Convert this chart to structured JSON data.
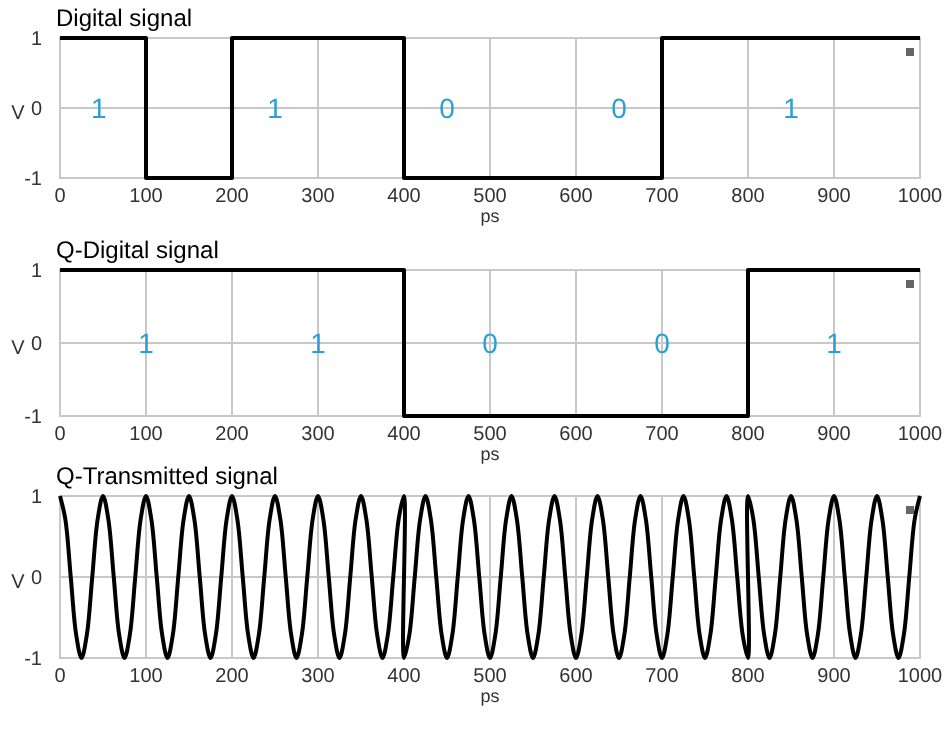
{
  "chart_data": [
    {
      "type": "step",
      "title": "Digital signal",
      "xlabel": "ps",
      "ylabel": "V",
      "x": [
        0,
        100,
        200,
        400,
        700,
        1000
      ],
      "series": [
        {
          "color": "#000000",
          "values": [
            1,
            -1,
            1,
            -1,
            1,
            1
          ]
        }
      ],
      "xlim": [
        0,
        1000
      ],
      "xticks": [
        0,
        100,
        200,
        300,
        400,
        500,
        600,
        700,
        800,
        900,
        1000
      ],
      "ylim": [
        -1,
        1
      ],
      "yticks": [
        -1,
        0,
        1
      ],
      "grid": true,
      "annotations": [
        "1",
        "1",
        "0",
        "0",
        "1"
      ]
    },
    {
      "type": "step",
      "title": "Q-Digital signal",
      "xlabel": "ps",
      "ylabel": "V",
      "x": [
        0,
        400,
        800,
        1000
      ],
      "series": [
        {
          "color": "#000000",
          "values": [
            1,
            -1,
            1,
            1
          ]
        }
      ],
      "xlim": [
        0,
        1000
      ],
      "xticks": [
        0,
        100,
        200,
        300,
        400,
        500,
        600,
        700,
        800,
        900,
        1000
      ],
      "ylim": [
        -1,
        1
      ],
      "yticks": [
        -1,
        0,
        1
      ],
      "grid": true,
      "annotations": [
        "1",
        "1",
        "0",
        "0",
        "1"
      ]
    },
    {
      "type": "line",
      "title": "Q-Transmitted signal",
      "xlabel": "ps",
      "ylabel": "V",
      "x": [
        0,
        6.25,
        12.5,
        18.75,
        25,
        31.25,
        37.5,
        43.75,
        50,
        56.25,
        62.5,
        68.75,
        75,
        81.25,
        87.5,
        93.75,
        100,
        106.25,
        112.5,
        118.75,
        125,
        131.25,
        137.5,
        143.75,
        150,
        156.25,
        162.5,
        168.75,
        175,
        181.25,
        187.5,
        193.75,
        200,
        206.25,
        212.5,
        218.75,
        225,
        231.25,
        237.5,
        243.75,
        250,
        256.25,
        262.5,
        268.75,
        275,
        281.25,
        287.5,
        293.75,
        300,
        306.25,
        312.5,
        318.75,
        325,
        331.25,
        337.5,
        343.75,
        350,
        356.25,
        362.5,
        368.75,
        375,
        381.25,
        387.5,
        393.75,
        400,
        400,
        406.25,
        412.5,
        418.75,
        425,
        431.25,
        437.5,
        443.75,
        450,
        456.25,
        462.5,
        468.75,
        475,
        481.25,
        487.5,
        493.75,
        500,
        506.25,
        512.5,
        518.75,
        525,
        531.25,
        537.5,
        543.75,
        550,
        556.25,
        562.5,
        568.75,
        575,
        581.25,
        587.5,
        593.75,
        600,
        606.25,
        612.5,
        618.75,
        625,
        631.25,
        637.5,
        643.75,
        650,
        656.25,
        662.5,
        668.75,
        675,
        681.25,
        687.5,
        693.75,
        700,
        706.25,
        712.5,
        718.75,
        725,
        731.25,
        737.5,
        743.75,
        750,
        756.25,
        762.5,
        768.75,
        775,
        781.25,
        787.5,
        793.75,
        800,
        800,
        806.25,
        812.5,
        818.75,
        825,
        831.25,
        837.5,
        843.75,
        850,
        856.25,
        862.5,
        868.75,
        875,
        881.25,
        887.5,
        893.75,
        900,
        906.25,
        912.5,
        918.75,
        925,
        931.25,
        937.5,
        943.75,
        950,
        956.25,
        962.5,
        968.75,
        975,
        981.25,
        987.5,
        993.75,
        1000
      ],
      "series": [
        {
          "color": "#000000",
          "values": [
            1,
            0.71,
            0,
            -0.71,
            -1,
            -0.71,
            0,
            0.71,
            1,
            0.71,
            0,
            -0.71,
            -1,
            -0.71,
            0,
            0.71,
            1,
            0.71,
            0,
            -0.71,
            -1,
            -0.71,
            0,
            0.71,
            1,
            0.71,
            0,
            -0.71,
            -1,
            -0.71,
            0,
            0.71,
            1,
            0.71,
            0,
            -0.71,
            -1,
            -0.71,
            0,
            0.71,
            1,
            0.71,
            0,
            -0.71,
            -1,
            -0.71,
            0,
            0.71,
            1,
            0.71,
            0,
            -0.71,
            -1,
            -0.71,
            0,
            0.71,
            1,
            0.71,
            0,
            -0.71,
            -1,
            -0.71,
            0,
            0.71,
            1,
            -1,
            -0.71,
            0,
            0.71,
            1,
            0.71,
            0,
            -0.71,
            -1,
            -0.71,
            0,
            0.71,
            1,
            0.71,
            0,
            -0.71,
            -1,
            -0.71,
            0,
            0.71,
            1,
            0.71,
            0,
            -0.71,
            -1,
            -0.71,
            0,
            0.71,
            1,
            0.71,
            0,
            -0.71,
            -1,
            -0.71,
            0,
            0.71,
            1,
            0.71,
            0,
            -0.71,
            -1,
            -0.71,
            0,
            0.71,
            1,
            0.71,
            0,
            -0.71,
            -1,
            -0.71,
            0,
            0.71,
            1,
            0.71,
            0,
            -0.71,
            -1,
            -0.71,
            0,
            0.71,
            1,
            0.71,
            0,
            -0.71,
            -1,
            1,
            0.71,
            0,
            -0.71,
            -1,
            -0.71,
            0,
            0.71,
            1,
            0.71,
            0,
            -0.71,
            -1,
            -0.71,
            0,
            0.71,
            1,
            0.71,
            0,
            -0.71,
            -1,
            -0.71,
            0,
            0.71,
            1,
            0.71,
            0,
            -0.71,
            -1,
            -0.71,
            0,
            0.71,
            1
          ]
        }
      ],
      "xlim": [
        0,
        1000
      ],
      "xticks": [
        0,
        100,
        200,
        300,
        400,
        500,
        600,
        700,
        800,
        900,
        1000
      ],
      "ylim": [
        -1,
        1
      ],
      "yticks": [
        -1,
        0,
        1
      ],
      "grid": true
    }
  ]
}
